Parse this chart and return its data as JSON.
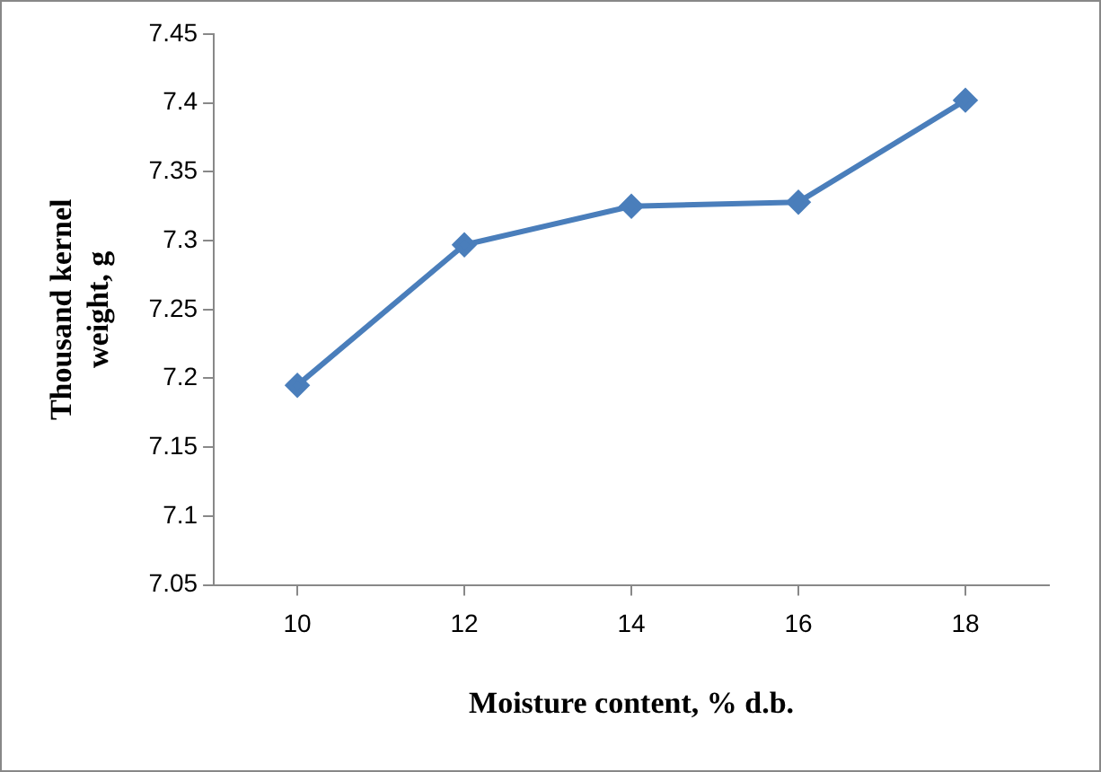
{
  "chart_data": {
    "type": "line",
    "xlabel": "Moisture content, % d.b.",
    "ylabel": "Thousand kernel weight, g",
    "categories": [
      "10",
      "12",
      "14",
      "16",
      "18"
    ],
    "series": [
      {
        "color": "#4a7ebb",
        "values": [
          7.195,
          7.297,
          7.325,
          7.328,
          7.402
        ]
      }
    ],
    "ylim": [
      7.05,
      7.45
    ],
    "yticks": [
      7.05,
      7.1,
      7.15,
      7.2,
      7.25,
      7.3,
      7.35,
      7.4,
      7.45
    ],
    "grid": false,
    "legend": false,
    "marker": "diamond",
    "line_style": "solid"
  }
}
